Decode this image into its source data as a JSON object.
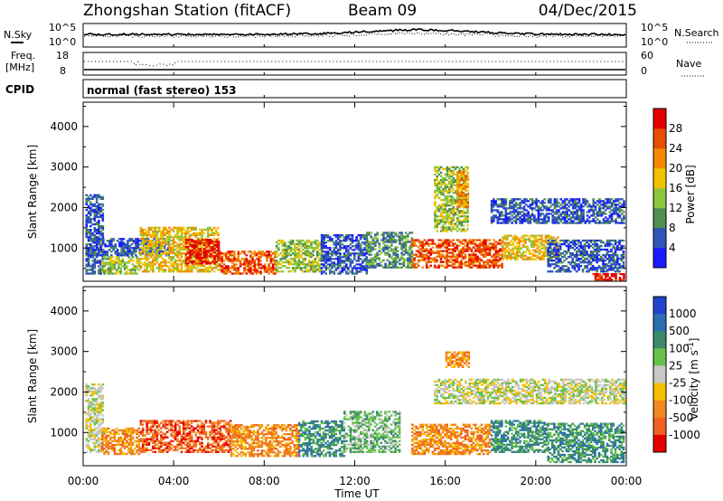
{
  "header": {
    "station": "Zhongshan Station (fitACF)",
    "beam": "Beam 09",
    "date": "04/Dec/2015"
  },
  "top_strip": {
    "left_label": "N.Sky",
    "left_ticks": [
      "10^5",
      "10^0"
    ],
    "right_ticks": [
      "10^5",
      "10^0"
    ],
    "right_label": "N.Search"
  },
  "freq_strip": {
    "left_label_1": "Freq.",
    "left_label_2": "[MHz]",
    "left_ticks": [
      "18",
      "8"
    ],
    "right_ticks": [
      "60",
      "0"
    ],
    "right_label": "Nave"
  },
  "cpid": {
    "label": "CPID",
    "text": "normal (fast stereo) 153"
  },
  "x_axis": {
    "label": "Time UT",
    "ticks": [
      "00:00",
      "04:00",
      "08:00",
      "12:00",
      "16:00",
      "20:00",
      "00:00"
    ]
  },
  "chart_data": [
    {
      "type": "heatmap",
      "title": "",
      "xlabel": "Time UT",
      "ylabel": "Slant Range [km]",
      "x_ticks": [
        "00:00",
        "04:00",
        "08:00",
        "12:00",
        "16:00",
        "20:00",
        "00:00"
      ],
      "y_ticks": [
        1000,
        2000,
        3000,
        4000
      ],
      "xlim": [
        0,
        24
      ],
      "ylim": [
        180,
        4600
      ],
      "colorbar": {
        "label": "Power [dB]",
        "ticks": [
          "4",
          "8",
          "12",
          "16",
          "20",
          "24",
          "28"
        ],
        "colors": [
          "#1a1aff",
          "#2e55b8",
          "#4f8f4f",
          "#8cc63f",
          "#f2c200",
          "#f58a00",
          "#e84d00",
          "#e60000"
        ]
      },
      "regions": [
        {
          "t": [
            0.1,
            0.9
          ],
          "r": [
            350,
            2300
          ],
          "level": 1
        },
        {
          "t": [
            0.3,
            3.8
          ],
          "r": [
            800,
            1250
          ],
          "level": 1
        },
        {
          "t": [
            0.8,
            2.5
          ],
          "r": [
            350,
            800
          ],
          "level": 3
        },
        {
          "t": [
            2.5,
            6.0
          ],
          "r": [
            400,
            1500
          ],
          "level": 4
        },
        {
          "t": [
            4.5,
            6.0
          ],
          "r": [
            600,
            1200
          ],
          "level": 7
        },
        {
          "t": [
            6.0,
            8.5
          ],
          "r": [
            350,
            900
          ],
          "level": 6
        },
        {
          "t": [
            8.5,
            10.5
          ],
          "r": [
            400,
            1200
          ],
          "level": 3
        },
        {
          "t": [
            10.5,
            12.5
          ],
          "r": [
            350,
            1300
          ],
          "level": 1
        },
        {
          "t": [
            12.5,
            14.5
          ],
          "r": [
            500,
            1400
          ],
          "level": 2
        },
        {
          "t": [
            14.5,
            18.5
          ],
          "r": [
            500,
            1200
          ],
          "level": 6
        },
        {
          "t": [
            15.5,
            17.0
          ],
          "r": [
            1400,
            3000
          ],
          "level": 3
        },
        {
          "t": [
            16.5,
            17.0
          ],
          "r": [
            2000,
            2900
          ],
          "level": 5
        },
        {
          "t": [
            18.5,
            21.0
          ],
          "r": [
            700,
            1300
          ],
          "level": 4
        },
        {
          "t": [
            18.0,
            23.9
          ],
          "r": [
            1600,
            2200
          ],
          "level": 1
        },
        {
          "t": [
            20.5,
            23.9
          ],
          "r": [
            400,
            1200
          ],
          "level": 1
        },
        {
          "t": [
            22.5,
            23.9
          ],
          "r": [
            200,
            350
          ],
          "level": 7
        }
      ]
    },
    {
      "type": "heatmap",
      "title": "",
      "xlabel": "Time UT",
      "ylabel": "Slant Range [km]",
      "x_ticks": [
        "00:00",
        "04:00",
        "08:00",
        "12:00",
        "16:00",
        "20:00",
        "00:00"
      ],
      "y_ticks": [
        1000,
        2000,
        3000,
        4000
      ],
      "xlim": [
        0,
        24
      ],
      "ylim": [
        180,
        4600
      ],
      "colorbar": {
        "label": "Velocity [m s^-1]",
        "ticks": [
          "1000",
          "500",
          "100",
          "25",
          "-25",
          "-100",
          "-500",
          "-1000"
        ],
        "colors": [
          "#2244cc",
          "#2d6fb0",
          "#3a8a6a",
          "#66c24a",
          "#c8c8c8",
          "#f5c000",
          "#f08a20",
          "#f06020",
          "#e60000"
        ]
      },
      "regions": [
        {
          "t": [
            0.1,
            0.9
          ],
          "r": [
            500,
            2200
          ],
          "level": 4
        },
        {
          "t": [
            0.8,
            2.5
          ],
          "r": [
            450,
            1100
          ],
          "level": 6
        },
        {
          "t": [
            2.5,
            6.5
          ],
          "r": [
            500,
            1300
          ],
          "level": 7
        },
        {
          "t": [
            6.5,
            9.5
          ],
          "r": [
            400,
            1200
          ],
          "level": 6
        },
        {
          "t": [
            9.5,
            11.5
          ],
          "r": [
            400,
            1300
          ],
          "level": 2
        },
        {
          "t": [
            11.5,
            14.0
          ],
          "r": [
            500,
            1500
          ],
          "level": 3
        },
        {
          "t": [
            14.5,
            18.0
          ],
          "r": [
            450,
            1200
          ],
          "level": 6
        },
        {
          "t": [
            16.0,
            17.0
          ],
          "r": [
            2600,
            3000
          ],
          "level": 6
        },
        {
          "t": [
            15.5,
            23.9
          ],
          "r": [
            1700,
            2300
          ],
          "level": 4
        },
        {
          "t": [
            18.0,
            20.5
          ],
          "r": [
            500,
            1300
          ],
          "level": 2
        },
        {
          "t": [
            20.5,
            23.9
          ],
          "r": [
            250,
            1200
          ],
          "level": 2
        }
      ]
    }
  ]
}
